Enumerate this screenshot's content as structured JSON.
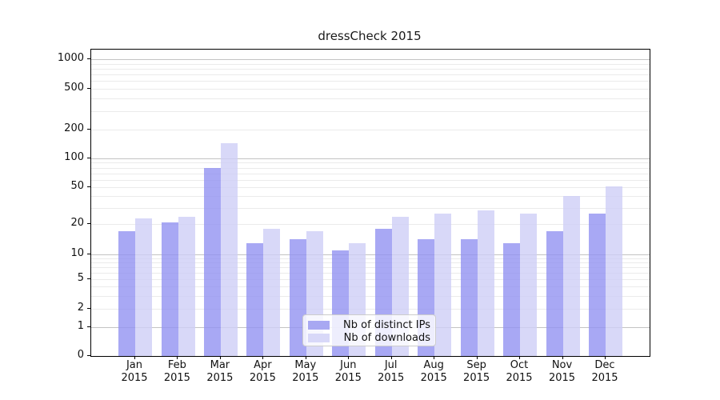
{
  "chart_data": {
    "type": "bar",
    "title": "dressCheck 2015",
    "categories": [
      "Jan",
      "Feb",
      "Mar",
      "Apr",
      "May",
      "Jun",
      "Jul",
      "Aug",
      "Sep",
      "Oct",
      "Nov",
      "Dec"
    ],
    "x_year_label": "2015",
    "series": [
      {
        "name": "Nb of distinct IPs",
        "color": "rgba(146,146,241,0.8)",
        "legend_color": "#a8a8f2",
        "values": [
          17,
          21,
          80,
          13,
          14,
          11,
          18,
          14,
          14,
          13,
          17,
          26
        ]
      },
      {
        "name": "Nb of downloads",
        "color": "rgba(206,206,246,0.8)",
        "legend_color": "#d8d8f8",
        "values": [
          23,
          24,
          145,
          18,
          17,
          13,
          24,
          26,
          28,
          26,
          40,
          51
        ]
      }
    ],
    "y_ticks": [
      0,
      1,
      2,
      5,
      10,
      20,
      50,
      100,
      200,
      500,
      1000
    ],
    "y_scale": "symlog",
    "ylim": [
      0,
      1200
    ],
    "grid": "horizontal major+minor",
    "legend_position": "inside-bottom-center",
    "colors": {
      "major_grid": "#c3c3c3",
      "minor_grid": "#ebebeb",
      "axis": "#000000",
      "text": "#111111"
    }
  }
}
